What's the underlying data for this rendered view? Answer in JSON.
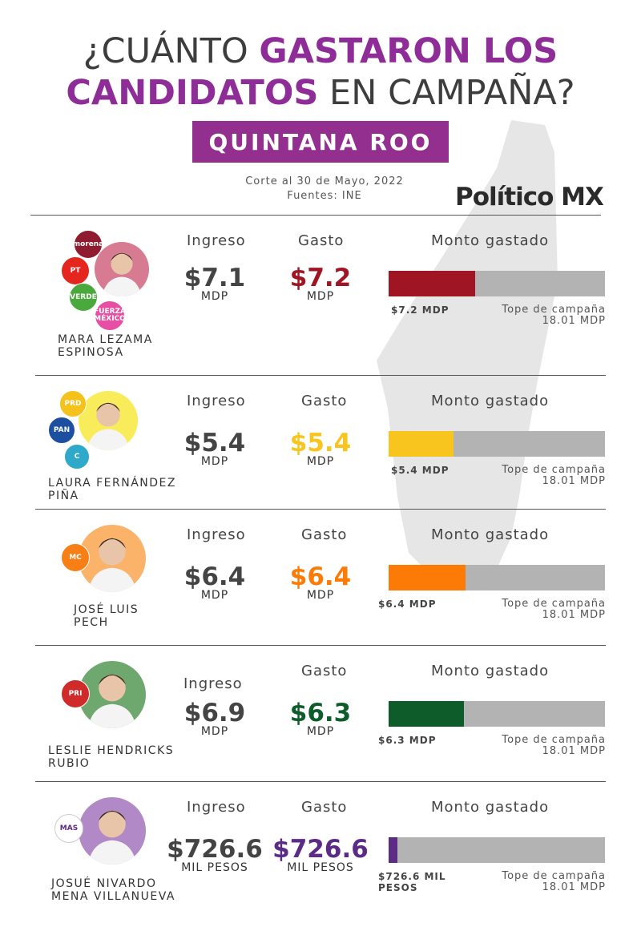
{
  "header": {
    "title_part1": "¿CUÁNTO ",
    "title_highlight1": "GASTARON LOS",
    "title_highlight2": "CANDIDATOS",
    "title_part2": " EN CAMPAÑA?",
    "state": "QUINTANA ROO",
    "cutoff": "Corte al 30 de Mayo, 2022",
    "sources": "Fuentes: INE",
    "brand": "Político MX"
  },
  "colors": {
    "accent": "#93308f",
    "title_highlight": "#8e2d97",
    "bar_background": "#b3b3b3",
    "state_shape": "#e6e6e6"
  },
  "labels": {
    "ingreso": "Ingreso",
    "gasto": "Gasto",
    "monto": "Monto gastado",
    "tope": "Tope de campaña",
    "tope_value": "18.01 MDP"
  },
  "chart_data": {
    "type": "bar",
    "orientation": "horizontal",
    "cap": 18.01,
    "cap_unit": "MDP",
    "categories": [
      "MARA LEZAMA ESPINOSA",
      "LAURA FERNÁNDEZ PIÑA",
      "JOSÉ LUIS PECH",
      "LESLIE HENDRICKS RUBIO",
      "JOSUÉ NIVARDO MENA VILLANUEVA"
    ],
    "series": [
      {
        "values": [
          7.2,
          5.4,
          6.4,
          6.3,
          0.7266
        ]
      }
    ],
    "xlim": [
      0,
      18.01
    ]
  },
  "candidates": [
    {
      "name_line1": "MARA LEZAMA",
      "name_line2": "ESPINOSA",
      "ingreso": "$7.1",
      "ingreso_unit": "MDP",
      "gasto": "$7.2",
      "gasto_unit": "MDP",
      "bar_label": "$7.2 MDP",
      "spent_mdp": 7.2,
      "color": "#a01523",
      "avatar_color": "#d77b92",
      "logos": [
        {
          "name": "morena-logo",
          "text": "morena",
          "color": "#8e1b2f"
        },
        {
          "name": "pt-logo",
          "text": "PT",
          "color": "#e5261f"
        },
        {
          "name": "verde-logo",
          "text": "VERDE",
          "color": "#4aa93d"
        },
        {
          "name": "fuerza-mexico-logo",
          "text": "FUERZA MÉXICO",
          "color": "#e64fa3"
        }
      ]
    },
    {
      "name_line1": "LAURA FERNÁNDEZ",
      "name_line2": "PIÑA",
      "ingreso": "$5.4",
      "ingreso_unit": "MDP",
      "gasto": "$5.4",
      "gasto_unit": "MDP",
      "bar_label": "$5.4 MDP",
      "spent_mdp": 5.4,
      "color": "#f7c51e",
      "avatar_color": "#f8ec5a",
      "logos": [
        {
          "name": "prd-logo",
          "text": "PRD",
          "color": "#f5c21b"
        },
        {
          "name": "pan-logo",
          "text": "PAN",
          "color": "#1d4fa1"
        },
        {
          "name": "confianza-logo",
          "text": "C",
          "color": "#2ea9c9"
        }
      ]
    },
    {
      "name_line1": "JOSÉ LUIS",
      "name_line2": "PECH",
      "ingreso": "$6.4",
      "ingreso_unit": "MDP",
      "gasto": "$6.4",
      "gasto_unit": "MDP",
      "bar_label": "$6.4 MDP",
      "spent_mdp": 6.4,
      "color": "#fb7b06",
      "avatar_color": "#fbb36a",
      "logos": [
        {
          "name": "movimiento-ciudadano-logo",
          "text": "MC",
          "color": "#f77f16"
        }
      ]
    },
    {
      "name_line1": "LESLIE HENDRICKS",
      "name_line2": "RUBIO",
      "ingreso": "$6.9",
      "ingreso_unit": "MDP",
      "gasto": "$6.3",
      "gasto_unit": "MDP",
      "bar_label": "$6.3 MDP",
      "spent_mdp": 6.3,
      "color": "#0d5c2a",
      "avatar_color": "#6ea86e",
      "logos": [
        {
          "name": "pri-logo",
          "text": "PRI",
          "color": "#cf2b2b"
        }
      ]
    },
    {
      "name_line1": "JOSUÉ NIVARDO",
      "name_line2": "MENA VILLANUEVA",
      "ingreso": "$726.6",
      "ingreso_unit": "MIL PESOS",
      "gasto": "$726.6",
      "gasto_unit": "MIL PESOS",
      "bar_label": "$726.6 MIL PESOS",
      "spent_mdp": 0.7266,
      "color": "#5b2b86",
      "avatar_color": "#b289c7",
      "logos": [
        {
          "name": "mas-logo",
          "text": "MAS",
          "color": "#ffffff"
        }
      ]
    }
  ]
}
